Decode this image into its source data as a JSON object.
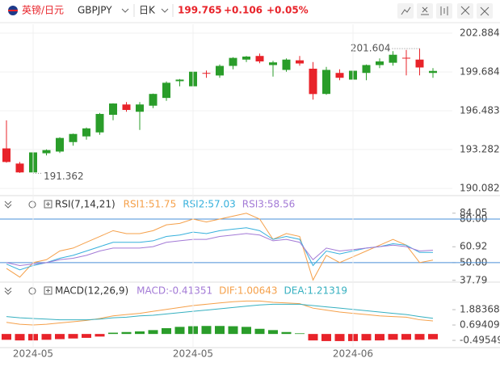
{
  "toolbar": {
    "pair_name": "英镑/日元",
    "symbol": "GBPJPY",
    "period": "日K",
    "price": "199.765",
    "change": "+0.106",
    "change_pct": "+0.05%"
  },
  "chart_data": [
    {
      "type": "candlestick",
      "up_color": "#2a9d2a",
      "down_color": "#e8232a",
      "open": [
        193.38,
        192.13,
        191.4,
        192.98,
        193.12,
        193.9,
        194.37,
        194.7,
        196.15,
        197.0,
        196.4,
        196.9,
        197.54,
        198.92,
        198.5,
        199.6,
        199.39,
        200.18,
        200.7,
        201.0,
        200.25,
        199.85,
        200.64,
        199.95,
        197.87,
        199.6,
        199.05,
        199.6,
        200.25,
        200.44,
        200.85,
        200.7,
        199.6
      ],
      "high": [
        195.69,
        192.26,
        193.18,
        193.3,
        194.3,
        194.6,
        195.1,
        196.3,
        197.1,
        197.2,
        197.2,
        197.9,
        198.9,
        199.1,
        199.7,
        199.8,
        200.3,
        200.9,
        201.0,
        201.2,
        200.6,
        200.8,
        201.0,
        200.5,
        200.1,
        199.9,
        200.0,
        200.3,
        200.8,
        201.4,
        201.5,
        201.604,
        200.0
      ],
      "low": [
        192.2,
        191.362,
        191.33,
        192.8,
        193.0,
        193.6,
        194.1,
        194.5,
        195.7,
        196.4,
        194.9,
        196.7,
        197.3,
        198.5,
        198.4,
        199.2,
        199.2,
        199.9,
        200.5,
        200.4,
        199.3,
        199.7,
        200.2,
        197.4,
        197.8,
        199.0,
        198.7,
        199.0,
        200.0,
        200.2,
        199.4,
        199.4,
        199.2
      ],
      "close": [
        192.26,
        191.4,
        193.05,
        193.24,
        194.24,
        194.57,
        195.03,
        196.22,
        197.08,
        196.55,
        197.0,
        197.87,
        198.79,
        199.05,
        199.7,
        199.55,
        200.18,
        200.84,
        200.95,
        200.55,
        200.47,
        200.7,
        200.38,
        197.86,
        199.85,
        199.2,
        199.78,
        200.25,
        200.55,
        201.1,
        200.8,
        200.05,
        199.765
      ],
      "ylim": [
        189.62,
        203.48
      ],
      "yticks": [
        202.884,
        199.684,
        196.483,
        193.282,
        190.082
      ],
      "grid": true,
      "annotations": [
        {
          "label": "201.604"
        },
        {
          "label": "191.362"
        }
      ]
    },
    {
      "type": "line",
      "title": "RSI(7,14,21)",
      "series": [
        {
          "name": "RSI1:51.75",
          "color": "#f5a04a",
          "values": [
            46,
            40,
            50,
            52,
            58,
            60,
            64,
            68,
            72,
            70,
            70,
            72,
            76,
            77,
            80,
            78,
            80,
            82,
            84,
            80,
            66,
            70,
            68,
            38,
            55,
            50,
            54,
            58,
            62,
            66,
            62,
            50,
            51.75
          ]
        },
        {
          "name": "RSI2:57.03",
          "color": "#36b0dc",
          "values": [
            49,
            45,
            48,
            50,
            53,
            55,
            58,
            61,
            64,
            64,
            64,
            65,
            68,
            69,
            71,
            70,
            72,
            73,
            74,
            72,
            66,
            68,
            66,
            48,
            58,
            56,
            58,
            60,
            61,
            63,
            62,
            57,
            57.03
          ]
        },
        {
          "name": "RSI3:58.56",
          "color": "#a37ad6",
          "values": [
            50,
            48,
            49,
            50,
            52,
            53,
            55,
            58,
            60,
            60,
            60,
            61,
            64,
            65,
            66,
            66,
            68,
            69,
            70,
            69,
            65,
            66,
            64,
            52,
            60,
            58,
            59,
            60,
            61,
            62,
            61,
            58,
            58.56
          ]
        }
      ],
      "ylim": [
        36,
        85
      ],
      "yticks": [
        {
          "value": 80,
          "label": "80.00"
        },
        84.05,
        60.92,
        {
          "value": 50,
          "label": "50.00"
        },
        37.79
      ],
      "hlines": [
        80,
        50
      ],
      "hline_color": "#4a8fd8"
    },
    {
      "type": "macd",
      "title": "MACD(12,26,9)",
      "categories": [
        null,
        null,
        "2024-05",
        null,
        null,
        null,
        null,
        null,
        null,
        null,
        null,
        null,
        null,
        null,
        "2024-05",
        null,
        null,
        null,
        null,
        null,
        null,
        null,
        null,
        null,
        null,
        null,
        "2024-06",
        null,
        null,
        null,
        null,
        null,
        null
      ],
      "histogram": {
        "name": "MACD:-0.41351",
        "color": "#a37ad6",
        "up_color": "#2a9d2a",
        "down_color": "#e8232a",
        "values": [
          -0.45,
          -0.5,
          -0.5,
          -0.45,
          -0.4,
          -0.35,
          -0.3,
          -0.2,
          0.1,
          0.15,
          0.2,
          0.3,
          0.45,
          0.55,
          0.6,
          0.62,
          0.62,
          0.6,
          0.55,
          0.4,
          0.3,
          0.15,
          0.05,
          -0.5,
          -0.55,
          -0.55,
          -0.55,
          -0.5,
          -0.5,
          -0.45,
          -0.45,
          -0.45,
          -0.41351
        ]
      },
      "series": [
        {
          "name": "DIF:1.00643",
          "color": "#f5a04a",
          "values": [
            0.9,
            0.75,
            0.7,
            0.75,
            0.85,
            0.95,
            1.05,
            1.2,
            1.4,
            1.5,
            1.6,
            1.75,
            1.9,
            2.05,
            2.2,
            2.3,
            2.4,
            2.5,
            2.55,
            2.55,
            2.45,
            2.4,
            2.35,
            2.0,
            1.85,
            1.7,
            1.6,
            1.5,
            1.4,
            1.35,
            1.3,
            1.1,
            1.00643
          ]
        },
        {
          "name": "DEA:1.21319",
          "color": "#36b0c0",
          "values": [
            1.35,
            1.25,
            1.2,
            1.15,
            1.1,
            1.1,
            1.1,
            1.15,
            1.25,
            1.3,
            1.4,
            1.45,
            1.55,
            1.65,
            1.75,
            1.85,
            1.95,
            2.05,
            2.15,
            2.25,
            2.3,
            2.3,
            2.3,
            2.2,
            2.1,
            2.0,
            1.9,
            1.8,
            1.7,
            1.6,
            1.5,
            1.35,
            1.21319
          ]
        }
      ],
      "ylim": [
        -0.93,
        2.7
      ],
      "yticks": [
        1.88368,
        0.69409,
        -0.49549
      ]
    }
  ]
}
